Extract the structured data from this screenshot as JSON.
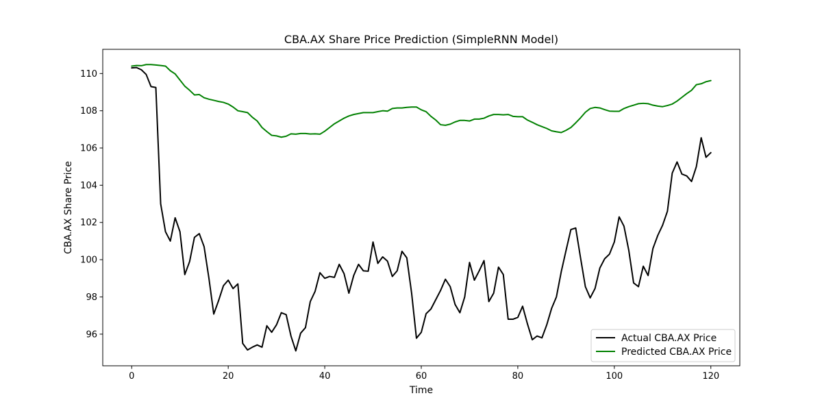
{
  "chart_data": {
    "type": "line",
    "title": "CBA.AX Share Price Prediction (SimpleRNN Model)",
    "xlabel": "Time",
    "ylabel": "CBA.AX Share Price",
    "xlim": [
      -6,
      126
    ],
    "ylim": [
      94.3,
      111.3
    ],
    "x_ticks": [
      0,
      20,
      40,
      60,
      80,
      100,
      120
    ],
    "y_ticks": [
      96,
      98,
      100,
      102,
      104,
      106,
      108,
      110
    ],
    "grid": false,
    "legend_position": "lower-right",
    "x": [
      0,
      1,
      2,
      3,
      4,
      5,
      6,
      7,
      8,
      9,
      10,
      11,
      12,
      13,
      14,
      15,
      16,
      17,
      18,
      19,
      20,
      21,
      22,
      23,
      24,
      25,
      26,
      27,
      28,
      29,
      30,
      31,
      32,
      33,
      34,
      35,
      36,
      37,
      38,
      39,
      40,
      41,
      42,
      43,
      44,
      45,
      46,
      47,
      48,
      49,
      50,
      51,
      52,
      53,
      54,
      55,
      56,
      57,
      58,
      59,
      60,
      61,
      62,
      63,
      64,
      65,
      66,
      67,
      68,
      69,
      70,
      71,
      72,
      73,
      74,
      75,
      76,
      77,
      78,
      79,
      80,
      81,
      82,
      83,
      84,
      85,
      86,
      87,
      88,
      89,
      90,
      91,
      92,
      93,
      94,
      95,
      96,
      97,
      98,
      99,
      100,
      101,
      102,
      103,
      104,
      105,
      106,
      107,
      108,
      109,
      110,
      111,
      112,
      113,
      114,
      115,
      116,
      117,
      118,
      119,
      120
    ],
    "series": [
      {
        "name": "Actual CBA.AX Price",
        "color": "#000000",
        "values": [
          110.3,
          110.32,
          110.2,
          109.95,
          109.3,
          109.25,
          103.0,
          101.5,
          101.0,
          102.25,
          101.5,
          99.2,
          99.9,
          101.2,
          101.4,
          100.7,
          99.0,
          97.08,
          97.8,
          98.6,
          98.9,
          98.45,
          98.7,
          95.5,
          95.15,
          95.3,
          95.42,
          95.3,
          96.45,
          96.1,
          96.5,
          97.15,
          97.05,
          95.9,
          95.1,
          96.05,
          96.35,
          97.75,
          98.3,
          99.3,
          99.0,
          99.1,
          99.05,
          99.75,
          99.25,
          98.2,
          99.15,
          99.75,
          99.4,
          99.38,
          100.95,
          99.8,
          100.15,
          99.92,
          99.1,
          99.4,
          100.45,
          100.1,
          98.2,
          95.78,
          96.1,
          97.1,
          97.35,
          97.85,
          98.35,
          98.95,
          98.55,
          97.6,
          97.15,
          98.0,
          99.85,
          98.9,
          99.4,
          99.95,
          97.75,
          98.2,
          99.6,
          99.2,
          96.8,
          96.8,
          96.9,
          97.5,
          96.55,
          95.7,
          95.9,
          95.8,
          96.5,
          97.38,
          98.0,
          99.35,
          100.5,
          101.62,
          101.7,
          100.1,
          98.55,
          97.95,
          98.45,
          99.55,
          100.05,
          100.3,
          100.95,
          102.3,
          101.8,
          100.5,
          98.75,
          98.55,
          99.65,
          99.15,
          100.6,
          101.3,
          101.85,
          102.6,
          104.65,
          105.25,
          104.6,
          104.5,
          104.2,
          105.0,
          106.55,
          105.5,
          105.75
        ]
      },
      {
        "name": "Predicted CBA.AX Price",
        "color": "#008000",
        "values": [
          110.4,
          110.43,
          110.42,
          110.48,
          110.48,
          110.46,
          110.43,
          110.4,
          110.15,
          109.98,
          109.65,
          109.32,
          109.1,
          108.85,
          108.87,
          108.7,
          108.62,
          108.56,
          108.5,
          108.45,
          108.36,
          108.2,
          108.0,
          107.95,
          107.9,
          107.65,
          107.45,
          107.1,
          106.88,
          106.68,
          106.65,
          106.58,
          106.63,
          106.76,
          106.74,
          106.78,
          106.78,
          106.75,
          106.76,
          106.74,
          106.9,
          107.1,
          107.3,
          107.45,
          107.6,
          107.72,
          107.8,
          107.85,
          107.9,
          107.9,
          107.9,
          107.95,
          108.0,
          107.98,
          108.12,
          108.15,
          108.15,
          108.18,
          108.2,
          108.2,
          108.05,
          107.95,
          107.7,
          107.5,
          107.25,
          107.22,
          107.28,
          107.4,
          107.48,
          107.48,
          107.45,
          107.55,
          107.55,
          107.6,
          107.72,
          107.8,
          107.8,
          107.78,
          107.8,
          107.7,
          107.68,
          107.68,
          107.5,
          107.38,
          107.25,
          107.15,
          107.05,
          106.92,
          106.87,
          106.83,
          106.95,
          107.1,
          107.35,
          107.62,
          107.92,
          108.12,
          108.18,
          108.15,
          108.06,
          107.98,
          107.97,
          107.97,
          108.12,
          108.22,
          108.3,
          108.38,
          108.4,
          108.38,
          108.3,
          108.25,
          108.22,
          108.28,
          108.36,
          108.52,
          108.72,
          108.92,
          109.1,
          109.4,
          109.45,
          109.56,
          109.62
        ]
      }
    ]
  }
}
